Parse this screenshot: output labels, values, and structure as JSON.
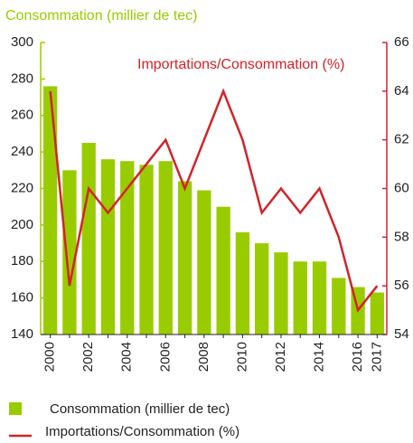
{
  "chart_data": {
    "type": "bar-line",
    "title": "Consommation (millier de tec)",
    "annotation": "Importations/Consommation (%)",
    "categories": [
      "2000",
      null,
      "2002",
      null,
      "2004",
      null,
      "2006",
      null,
      "2008",
      null,
      "2010",
      null,
      "2012",
      null,
      "2014",
      null,
      "2016",
      "2017"
    ],
    "series": [
      {
        "name": "Consommation (millier de tec)",
        "type": "bar",
        "color": "#99cc00",
        "values": [
          276,
          230,
          245,
          236,
          235,
          233,
          235,
          224,
          219,
          210,
          196,
          190,
          185,
          180,
          180,
          171,
          166,
          163
        ]
      },
      {
        "name": "Importations/Consommation (%)",
        "type": "line",
        "axis": "y2",
        "color": "#d2232a",
        "values": [
          64,
          56,
          60,
          59,
          60,
          61,
          62,
          60,
          62,
          64,
          62,
          59,
          60,
          59,
          60,
          58,
          55,
          56
        ]
      }
    ],
    "ylim": [
      140,
      300
    ],
    "yticks": [
      140,
      160,
      180,
      200,
      220,
      240,
      260,
      280,
      300
    ],
    "y2lim": [
      54,
      66
    ],
    "y2ticks": [
      54,
      56,
      58,
      60,
      62,
      64,
      66
    ],
    "grid": false
  }
}
